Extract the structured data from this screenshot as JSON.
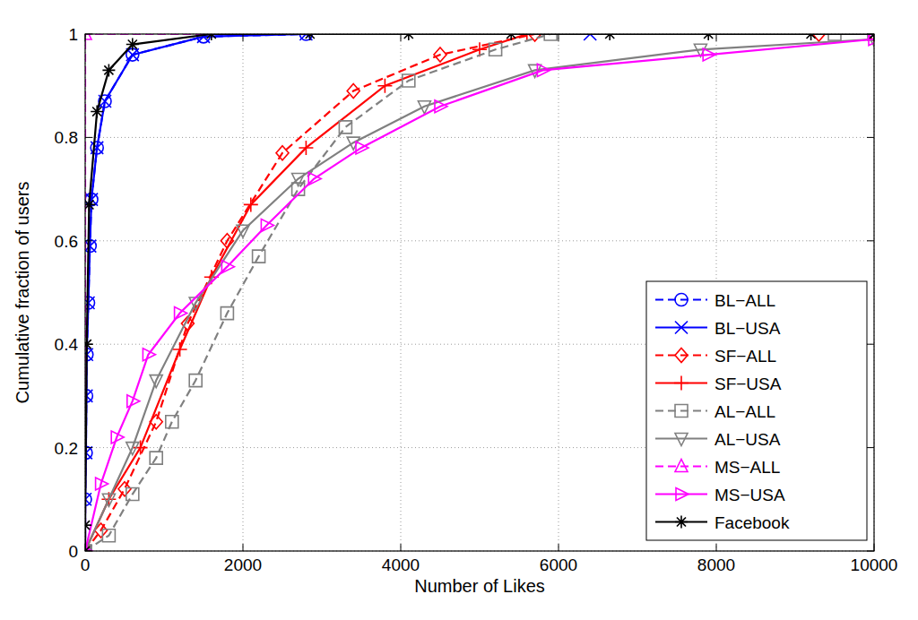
{
  "chart_data": {
    "type": "line",
    "x_label": "Number of Likes",
    "y_label": "Cumulative fraction of users",
    "xlim": [
      0,
      10000
    ],
    "xticks": [
      0,
      2000,
      4000,
      6000,
      8000,
      10000
    ],
    "ylim": [
      0,
      1
    ],
    "yticks": [
      0,
      0.2,
      0.4,
      0.6,
      0.8,
      1
    ],
    "grid": true,
    "legend": "lower right",
    "series": [
      {
        "name": "BL−ALL",
        "color": "#0000ff",
        "marker": "circle",
        "line_style": "dashed",
        "x": [
          0,
          0,
          10,
          15,
          20,
          40,
          60,
          80,
          150,
          250,
          600,
          1500,
          2800,
          10000
        ],
        "values": [
          0,
          0.1,
          0.19,
          0.3,
          0.38,
          0.48,
          0.59,
          0.68,
          0.78,
          0.87,
          0.96,
          0.995,
          1,
          1
        ]
      },
      {
        "name": "BL−USA",
        "color": "#0000ff",
        "marker": "x",
        "line_style": "solid",
        "x": [
          0,
          0,
          10,
          15,
          20,
          40,
          60,
          80,
          150,
          250,
          600,
          1500,
          2800,
          6400,
          10000
        ],
        "values": [
          0,
          0.1,
          0.19,
          0.3,
          0.38,
          0.48,
          0.59,
          0.68,
          0.78,
          0.87,
          0.96,
          0.995,
          1,
          1,
          1
        ]
      },
      {
        "name": "SF−ALL",
        "color": "#ff0000",
        "marker": "diamond",
        "line_style": "dashed",
        "x": [
          0,
          200,
          500,
          900,
          1300,
          1800,
          2500,
          3400,
          4500,
          5700,
          9300,
          10000
        ],
        "values": [
          0,
          0.04,
          0.12,
          0.25,
          0.44,
          0.6,
          0.77,
          0.89,
          0.96,
          1,
          1,
          1
        ]
      },
      {
        "name": "SF−USA",
        "color": "#ff0000",
        "marker": "plus",
        "line_style": "solid",
        "x": [
          0,
          300,
          700,
          1200,
          1600,
          2100,
          2800,
          3800,
          5000,
          5600,
          10000
        ],
        "values": [
          0,
          0.1,
          0.2,
          0.39,
          0.53,
          0.67,
          0.78,
          0.9,
          0.97,
          1,
          1
        ]
      },
      {
        "name": "AL−ALL",
        "color": "#808080",
        "marker": "square",
        "line_style": "dashed",
        "x": [
          0,
          300,
          600,
          900,
          1100,
          1400,
          1800,
          2200,
          2700,
          3300,
          4100,
          5200,
          5900,
          9500,
          10000
        ],
        "values": [
          0,
          0.03,
          0.11,
          0.18,
          0.25,
          0.33,
          0.46,
          0.57,
          0.7,
          0.82,
          0.91,
          0.97,
          1,
          1,
          1
        ]
      },
      {
        "name": "AL−USA",
        "color": "#808080",
        "marker": "triangle-down",
        "line_style": "solid",
        "x": [
          0,
          300,
          600,
          900,
          1400,
          2000,
          2700,
          3400,
          4300,
          5700,
          7800,
          10000
        ],
        "values": [
          0,
          0.1,
          0.2,
          0.33,
          0.48,
          0.62,
          0.72,
          0.79,
          0.86,
          0.93,
          0.97,
          0.99
        ]
      },
      {
        "name": "MS−ALL",
        "color": "#ff00ff",
        "marker": "triangle-up",
        "line_style": "dashed",
        "x": [
          0,
          0,
          10000
        ],
        "values": [
          0,
          1,
          1
        ]
      },
      {
        "name": "MS−USA",
        "color": "#ff00ff",
        "marker": "triangle-right",
        "line_style": "solid",
        "x": [
          0,
          200,
          400,
          600,
          800,
          1200,
          1800,
          2300,
          2900,
          3500,
          4500,
          5800,
          7900,
          10000
        ],
        "values": [
          0,
          0.13,
          0.22,
          0.29,
          0.38,
          0.46,
          0.55,
          0.63,
          0.72,
          0.78,
          0.86,
          0.93,
          0.96,
          0.99
        ]
      },
      {
        "name": "Facebook",
        "color": "#000000",
        "marker": "asterisk",
        "line_style": "solid",
        "x": [
          0,
          0,
          20,
          50,
          150,
          300,
          600,
          1600,
          2850,
          4100,
          5400,
          6650,
          7900,
          9200,
          10000
        ],
        "values": [
          0,
          0.05,
          0.4,
          0.67,
          0.85,
          0.93,
          0.98,
          1,
          1,
          1,
          1,
          1,
          1,
          1,
          1
        ]
      }
    ]
  }
}
